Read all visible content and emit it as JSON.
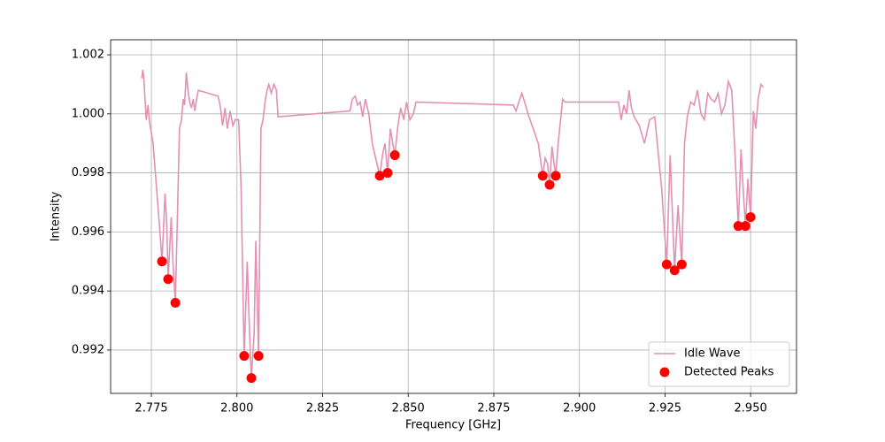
{
  "chart_data": {
    "type": "line",
    "xlabel": "Frequency [GHz]",
    "ylabel": "Intensity",
    "xlim": [
      2.7631,
      2.9634
    ],
    "ylim": [
      0.99053,
      1.00251
    ],
    "xticks": [
      2.775,
      {
        "value": 2.8,
        "label": "2.800"
      },
      2.825,
      {
        "value": 2.85,
        "label": "2.850"
      },
      2.875,
      {
        "value": 2.9,
        "label": "2.900"
      },
      2.925,
      {
        "value": 2.95,
        "label": "2.950"
      }
    ],
    "yticks": [
      0.992,
      0.994,
      0.996,
      0.998,
      {
        "value": 1,
        "label": "1.000"
      },
      1.002
    ],
    "grid": true,
    "legend": "lower right",
    "series": [
      {
        "name": "Idle Wave",
        "type": "line",
        "color": "#e291b3",
        "x": [
          2.7722,
          2.7725,
          2.7728,
          2.7735,
          2.774,
          2.7745,
          2.7755,
          2.7765,
          2.7775,
          2.7781,
          2.779,
          2.7795,
          2.7799,
          2.7808,
          2.7813,
          2.782,
          2.7826,
          2.7832,
          2.7838,
          2.7843,
          2.7847,
          2.7852,
          2.7857,
          2.7862,
          2.7867,
          2.7872,
          2.7877,
          2.7882,
          2.7887,
          2.7945,
          2.7952,
          2.7958,
          2.7965,
          2.7972,
          2.798,
          2.7988,
          2.7995,
          2.8005,
          2.8012,
          2.8021,
          2.803,
          2.8037,
          2.8042,
          2.805,
          2.8055,
          2.8063,
          2.807,
          2.8076,
          2.8083,
          2.8088,
          2.8093,
          2.81,
          2.8108,
          2.8115,
          2.812,
          2.833,
          2.8337,
          2.8345,
          2.8352,
          2.836,
          2.8367,
          2.8375,
          2.8385,
          2.8395,
          2.8405,
          2.8417,
          2.8425,
          2.8432,
          2.844,
          2.8448,
          2.8455,
          2.8461,
          2.847,
          2.8478,
          2.8487,
          2.8495,
          2.8505,
          2.8515,
          2.8523,
          2.8807,
          2.8815,
          2.8823,
          2.8832,
          2.884,
          2.885,
          2.8865,
          2.888,
          2.8893,
          2.89,
          2.8907,
          2.8913,
          2.892,
          2.8925,
          2.8931,
          2.8938,
          2.8945,
          2.8951,
          2.8958,
          2.9114,
          2.9122,
          2.913,
          2.9138,
          2.9145,
          2.9152,
          2.916,
          2.9175,
          2.919,
          2.9205,
          2.922,
          2.924,
          2.9255,
          2.9265,
          2.9278,
          2.9288,
          2.9299,
          2.9307,
          2.9315,
          2.9325,
          2.9335,
          2.9345,
          2.9355,
          2.9365,
          2.9375,
          2.9385,
          2.9395,
          2.9405,
          2.9415,
          2.9425,
          2.9435,
          2.9445,
          2.9455,
          2.9464,
          2.9472,
          2.9478,
          2.9485,
          2.9492,
          2.95,
          2.9508,
          2.9515,
          2.9522,
          2.953,
          2.9537
        ],
        "values": [
          1.0012,
          1.0015,
          1.0012,
          0.9998,
          1.0003,
          0.9997,
          0.999,
          0.9975,
          0.996,
          0.995,
          0.9973,
          0.9962,
          0.9944,
          0.9965,
          0.995,
          0.9936,
          0.9965,
          0.9995,
          0.9998,
          1.0005,
          1.0003,
          1.0014,
          1.0008,
          1.0004,
          1.0002,
          1.0005,
          1.0001,
          1.0005,
          1.0008,
          1.0006,
          1.0002,
          0.9996,
          1.0002,
          0.9995,
          1.0001,
          0.9996,
          0.9998,
          0.9998,
          0.9975,
          0.9918,
          0.995,
          0.9925,
          0.99105,
          0.9925,
          0.9957,
          0.9918,
          0.9995,
          0.9998,
          1.0005,
          1.0008,
          1.001,
          1.0007,
          1.001,
          1.0008,
          0.9999,
          1.0001,
          1.0005,
          1.0006,
          1.0003,
          1.0004,
          0.9999,
          1.0005,
          1.0,
          0.999,
          0.9985,
          0.9979,
          0.9986,
          0.999,
          0.998,
          0.9995,
          0.999,
          0.9986,
          0.9996,
          1.0002,
          0.9998,
          1.0004,
          0.9998,
          1.0,
          1.0004,
          1.0003,
          1.0001,
          1.0004,
          1.0007,
          1.0004,
          1.0,
          0.9995,
          0.999,
          0.9979,
          0.9985,
          0.9983,
          0.9976,
          0.9989,
          0.9984,
          0.9979,
          0.999,
          0.9998,
          1.0005,
          1.0004,
          1.0004,
          0.9998,
          1.0003,
          1.0,
          1.0008,
          1.0002,
          0.9999,
          0.9996,
          0.999,
          0.9998,
          0.9999,
          0.9975,
          0.9949,
          0.9986,
          0.9947,
          0.9969,
          0.9949,
          0.999,
          0.9999,
          1.0004,
          1.0003,
          1.0008,
          1.0,
          0.9998,
          1.0007,
          1.0005,
          1.0004,
          1.0007,
          1.0,
          1.0003,
          1.0011,
          1.0008,
          0.9985,
          0.9962,
          0.9988,
          0.9975,
          0.9962,
          0.9978,
          0.9965,
          1.0001,
          0.9995,
          1.0005,
          1.001,
          1.0009
        ]
      },
      {
        "name": "Detected Peaks",
        "type": "scatter",
        "color": "#ff0000",
        "x": [
          2.7781,
          2.7799,
          2.782,
          2.8021,
          2.8042,
          2.8063,
          2.8417,
          2.844,
          2.8461,
          2.8893,
          2.8913,
          2.8931,
          2.9255,
          2.9278,
          2.9299,
          2.9464,
          2.9485,
          2.95
        ],
        "values": [
          0.995,
          0.9944,
          0.9936,
          0.9918,
          0.99105,
          0.9918,
          0.9979,
          0.998,
          0.9986,
          0.9979,
          0.9976,
          0.9979,
          0.9949,
          0.9947,
          0.9949,
          0.9962,
          0.9962,
          0.9965
        ]
      }
    ]
  }
}
